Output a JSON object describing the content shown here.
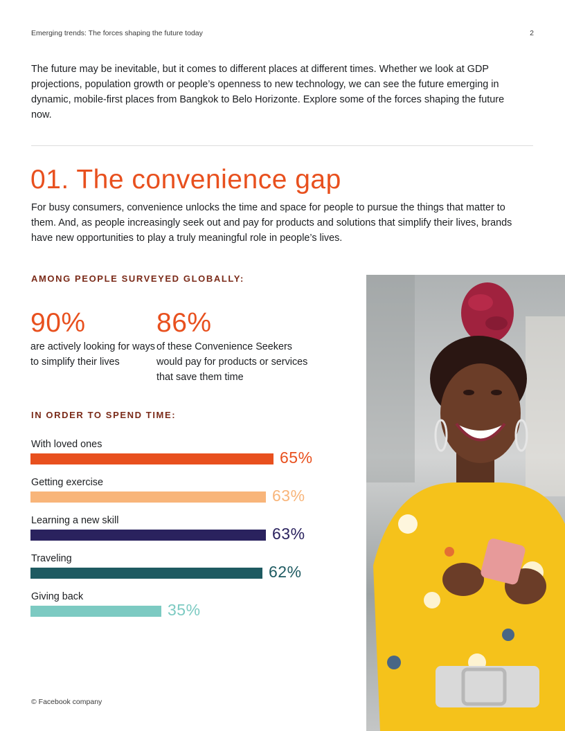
{
  "header": {
    "running_title": "Emerging trends: The forces shaping the future today",
    "page_number": "2"
  },
  "intro": {
    "text": "The future may be inevitable, but it comes to different places at different times. Whether we look at GDP projections, population growth or people’s openness to new technology, we can see the future emerging in dynamic, mobile-first places from Bangkok to Belo Horizonte. Explore some of the forces shaping the future now."
  },
  "section": {
    "title": "01. The convenience gap",
    "body": "For busy consumers, convenience unlocks the time and space for people to pursue the things that matter to them. And, as people increasingly seek out and pay for products and solutions that simplify their lives, brands have new opportunities to play a truly meaningful role in people’s lives."
  },
  "survey": {
    "heading": "AMONG PEOPLE SURVEYED GLOBALLY:",
    "stats": [
      {
        "value": "90%",
        "description": "are actively looking for ways to simplify their lives"
      },
      {
        "value": "86%",
        "description": "of these Convenience Seekers would pay for products or services that save them time"
      }
    ]
  },
  "chart_data": {
    "type": "bar",
    "title": "IN ORDER TO SPEND TIME:",
    "categories": [
      "With loved ones",
      "Getting exercise",
      "Learning a new skill",
      "Traveling",
      "Giving back"
    ],
    "values": [
      65,
      63,
      63,
      62,
      35
    ],
    "value_labels": [
      "65%",
      "63%",
      "63%",
      "62%",
      "35%"
    ],
    "colors": [
      "#e8501e",
      "#f8b57a",
      "#2a225e",
      "#1e5a61",
      "#7ccac2"
    ],
    "orientation": "horizontal",
    "xlabel": "",
    "ylabel": "",
    "grid": false
  },
  "theme": {
    "accent": "#e8501e",
    "heading_dark": "#7a2a18",
    "text": "#1c1e21"
  },
  "photo": {
    "icon": "smiling-woman-with-phone-photo"
  },
  "footer": {
    "copyright": "© Facebook company"
  }
}
